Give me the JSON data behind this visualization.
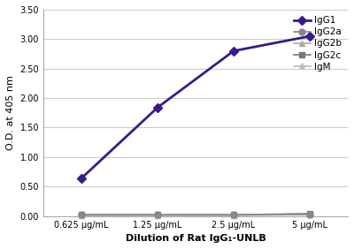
{
  "x_labels": [
    "0.625 μg/mL",
    "1.25 μg/mL",
    "2.5 μg/mL",
    "5 μg/mL"
  ],
  "x_values": [
    0,
    1,
    2,
    3
  ],
  "series": [
    {
      "name": "IgG1",
      "values": [
        0.64,
        1.84,
        2.8,
        3.05
      ],
      "color": "#3a1a8a",
      "marker": "D",
      "linewidth": 2.0,
      "markersize": 5,
      "zorder": 5
    },
    {
      "name": "IgG2a",
      "values": [
        0.02,
        0.02,
        0.02,
        0.03
      ],
      "color": "#888888",
      "marker": "o",
      "linewidth": 1.2,
      "markersize": 5,
      "zorder": 4
    },
    {
      "name": "IgG2b",
      "values": [
        0.015,
        0.015,
        0.015,
        0.025
      ],
      "color": "#aaaaaa",
      "marker": "^",
      "linewidth": 1.2,
      "markersize": 5,
      "zorder": 3
    },
    {
      "name": "IgG2c",
      "values": [
        0.02,
        0.02,
        0.02,
        0.04
      ],
      "color": "#777777",
      "marker": "s",
      "linewidth": 1.2,
      "markersize": 5,
      "zorder": 2
    },
    {
      "name": "IgM",
      "values": [
        0.015,
        0.015,
        0.015,
        0.025
      ],
      "color": "#bbbbbb",
      "marker": "*",
      "linewidth": 1.2,
      "markersize": 6,
      "zorder": 1
    }
  ],
  "ylabel": "O.D. at 405 nm",
  "xlabel": "Dilution of Rat IgG₁-UNLB",
  "ylim": [
    0.0,
    3.5
  ],
  "yticks": [
    0.0,
    0.5,
    1.0,
    1.5,
    2.0,
    2.5,
    3.0,
    3.5
  ],
  "background_color": "#ffffff",
  "grid_color": "#cccccc",
  "axis_fontsize": 8,
  "tick_fontsize": 7,
  "legend_fontsize": 7.5
}
